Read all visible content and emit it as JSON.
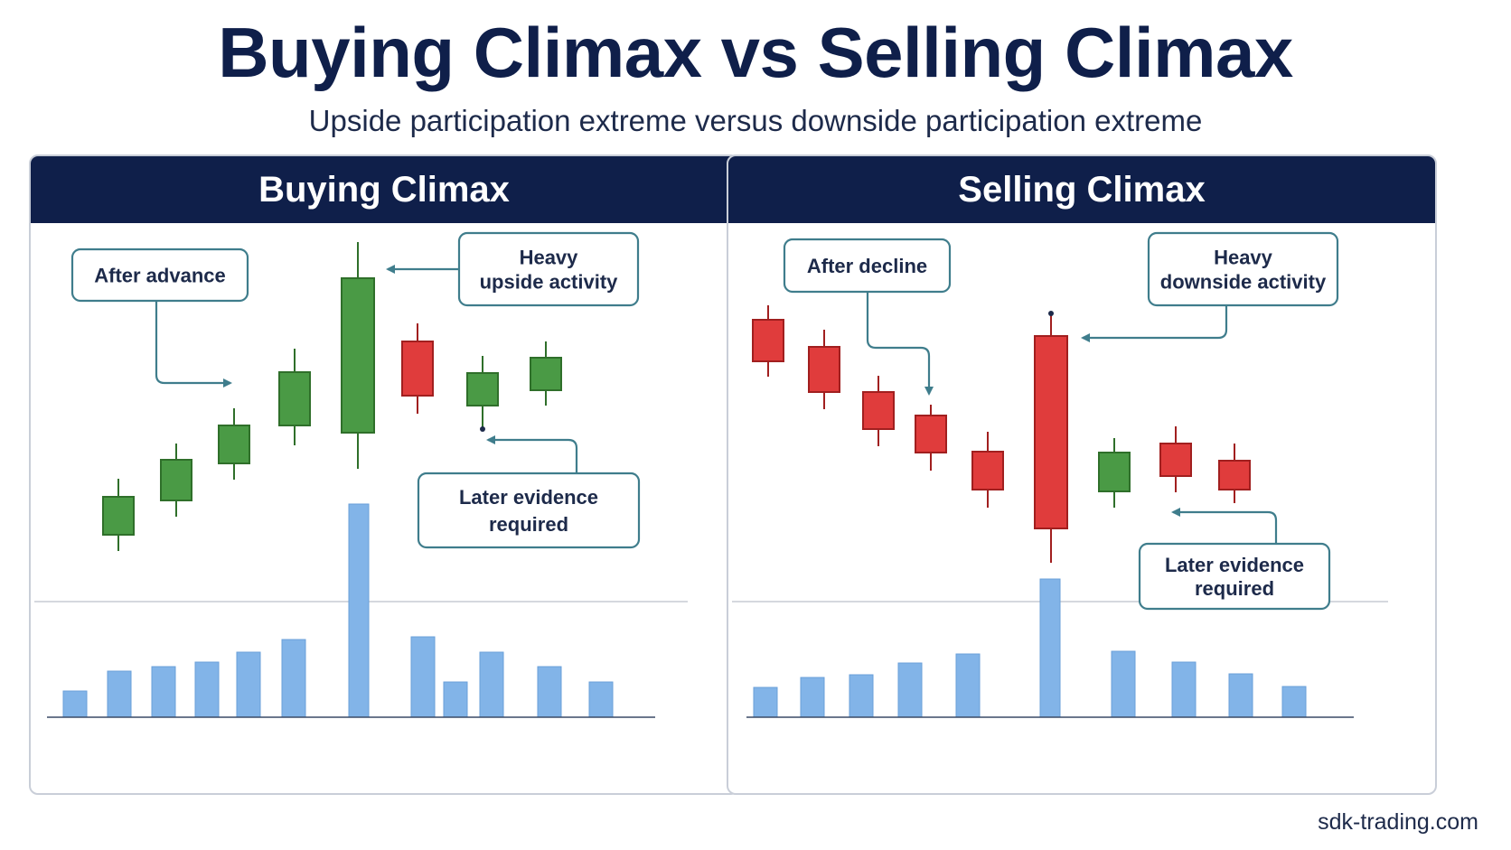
{
  "title": "Buying Climax vs Selling Climax",
  "subtitle": "Upside participation extreme versus downside participation extreme",
  "footer": "sdk-trading.com",
  "colors": {
    "header": "#0f1f4a",
    "bull": "#4a9a45",
    "bear": "#e03c3c",
    "volume": "#82b4e8",
    "callout": "#3f7d8c"
  },
  "panels": [
    {
      "title": "Buying Climax",
      "callouts": {
        "start": [
          "After advance"
        ],
        "climax": [
          "Heavy",
          "upside activity"
        ],
        "later": [
          "Later evidence",
          "required"
        ]
      }
    },
    {
      "title": "Selling Climax",
      "callouts": {
        "start": [
          "After decline"
        ],
        "climax": [
          "Heavy",
          "downside activity"
        ],
        "later": [
          "Later evidence",
          "required"
        ]
      }
    }
  ]
}
